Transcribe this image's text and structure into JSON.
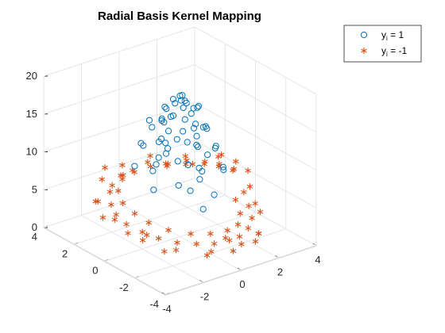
{
  "chart_data": {
    "type": "scatter3d",
    "title": "Radial Basis Kernel Mapping",
    "xlabel": "",
    "ylabel": "",
    "zlabel": "",
    "xlim": [
      -4,
      4
    ],
    "ylim": [
      -4,
      4
    ],
    "zlim": [
      0,
      20
    ],
    "x_ticks": [
      -4,
      -2,
      0,
      2,
      4
    ],
    "y_ticks": [
      -4,
      -2,
      0,
      2,
      4
    ],
    "z_ticks": [
      0,
      5,
      10,
      15,
      20
    ],
    "grid": true,
    "legend_position": "top-right",
    "colors": {
      "class_pos": "#0072BD",
      "class_neg": "#D95319"
    },
    "legend": {
      "entries": [
        {
          "label_main": "y",
          "label_sub": "i",
          "label_rest": " = 1",
          "marker": "circle"
        },
        {
          "label_main": "y",
          "label_sub": "i",
          "label_rest": " = -1",
          "marker": "asterisk"
        }
      ]
    },
    "series": [
      {
        "name": "y_i = 1",
        "marker": "circle",
        "points": [
          [
            0.0,
            0.0,
            18.6
          ],
          [
            0.2,
            0.1,
            18.4
          ],
          [
            -0.2,
            0.2,
            18.1
          ],
          [
            0.1,
            -0.3,
            17.9
          ],
          [
            -0.1,
            -0.2,
            18.3
          ],
          [
            0.5,
            0.3,
            17.2
          ],
          [
            -0.4,
            0.5,
            16.9
          ],
          [
            0.6,
            -0.4,
            17.0
          ],
          [
            -0.6,
            -0.3,
            16.8
          ],
          [
            0.3,
            0.7,
            16.6
          ],
          [
            -0.3,
            -0.7,
            16.5
          ],
          [
            0.8,
            0.1,
            16.2
          ],
          [
            -0.8,
            0.2,
            16.0
          ],
          [
            0.0,
            0.9,
            15.9
          ],
          [
            0.1,
            -0.9,
            15.8
          ],
          [
            1.0,
            0.5,
            14.9
          ],
          [
            -1.0,
            0.6,
            14.6
          ],
          [
            0.7,
            -0.9,
            14.7
          ],
          [
            -0.8,
            -0.8,
            14.4
          ],
          [
            0.4,
            1.1,
            14.3
          ],
          [
            -0.5,
            -1.1,
            14.1
          ],
          [
            1.2,
            -0.2,
            13.8
          ],
          [
            -1.2,
            -0.1,
            13.6
          ],
          [
            0.2,
            1.3,
            13.5
          ],
          [
            -0.1,
            -1.3,
            13.4
          ],
          [
            1.3,
            0.7,
            12.5
          ],
          [
            -1.3,
            0.8,
            12.2
          ],
          [
            0.9,
            -1.2,
            12.3
          ],
          [
            -1.0,
            -1.1,
            12.0
          ],
          [
            0.6,
            1.5,
            11.8
          ],
          [
            -0.7,
            -1.4,
            11.6
          ],
          [
            1.5,
            -0.5,
            11.3
          ],
          [
            -1.5,
            -0.3,
            11.1
          ],
          [
            0.3,
            1.6,
            10.9
          ],
          [
            -0.2,
            -1.7,
            10.7
          ],
          [
            1.6,
            0.9,
            9.8
          ],
          [
            -1.6,
            1.0,
            9.5
          ],
          [
            1.1,
            -1.5,
            9.6
          ],
          [
            -1.2,
            -1.4,
            9.3
          ],
          [
            0.8,
            1.8,
            9.0
          ],
          [
            -0.9,
            -1.8,
            8.8
          ],
          [
            1.8,
            -0.6,
            8.4
          ],
          [
            -1.8,
            -0.5,
            8.2
          ],
          [
            0.4,
            1.9,
            8.0
          ],
          [
            0.2,
            -2.0,
            7.6
          ],
          [
            1.2,
            1.3,
            11.5
          ],
          [
            -1.1,
            1.2,
            11.9
          ],
          [
            0.9,
            0.9,
            15.3
          ],
          [
            -0.9,
            0.9,
            15.1
          ],
          [
            0.5,
            -0.6,
            17.5
          ],
          [
            -1.3,
            -0.7,
            12.8
          ],
          [
            1.4,
            0.2,
            13.1
          ],
          [
            0.0,
            1.2,
            14.0
          ],
          [
            0.0,
            -1.1,
            14.5
          ],
          [
            1.7,
            0.3,
            9.1
          ],
          [
            -1.6,
            -0.2,
            10.2
          ],
          [
            0.6,
            1.7,
            10.0
          ],
          [
            -0.4,
            -1.8,
            9.9
          ],
          [
            1.9,
            1.1,
            6.3
          ],
          [
            -0.3,
            -1.9,
            6.0
          ]
        ]
      },
      {
        "name": "y_i = -1",
        "marker": "asterisk",
        "points": [
          [
            2.8,
            0.0,
            6.5
          ],
          [
            2.7,
            0.8,
            6.2
          ],
          [
            2.5,
            1.5,
            5.9
          ],
          [
            2.0,
            2.1,
            5.6
          ],
          [
            1.4,
            2.6,
            5.3
          ],
          [
            0.7,
            2.8,
            5.6
          ],
          [
            0.0,
            3.0,
            5.2
          ],
          [
            -0.8,
            2.9,
            5.5
          ],
          [
            -1.5,
            2.6,
            5.1
          ],
          [
            -2.1,
            2.0,
            5.4
          ],
          [
            -2.6,
            1.3,
            4.9
          ],
          [
            -2.9,
            0.6,
            4.6
          ],
          [
            -3.0,
            -0.2,
            4.3
          ],
          [
            -2.8,
            -1.0,
            4.0
          ],
          [
            -2.5,
            -1.7,
            3.7
          ],
          [
            -2.0,
            -2.3,
            3.4
          ],
          [
            -1.3,
            -2.7,
            3.1
          ],
          [
            -0.6,
            -3.0,
            2.9
          ],
          [
            0.2,
            -3.0,
            2.7
          ],
          [
            0.9,
            -2.8,
            2.4
          ],
          [
            1.6,
            -2.5,
            2.6
          ],
          [
            2.2,
            -2.0,
            2.9
          ],
          [
            2.6,
            -1.3,
            3.4
          ],
          [
            2.9,
            -0.6,
            4.2
          ],
          [
            3.2,
            0.3,
            7.0
          ],
          [
            3.0,
            1.2,
            6.8
          ],
          [
            2.3,
            2.5,
            6.0
          ],
          [
            1.0,
            3.2,
            6.3
          ],
          [
            -0.4,
            3.3,
            6.1
          ],
          [
            -1.8,
            2.9,
            5.8
          ],
          [
            -2.9,
            1.8,
            5.0
          ],
          [
            -3.3,
            0.2,
            4.7
          ],
          [
            -3.1,
            -1.4,
            3.6
          ],
          [
            -2.3,
            -2.6,
            3.0
          ],
          [
            -1.0,
            -3.3,
            2.5
          ],
          [
            0.6,
            -3.3,
            2.2
          ],
          [
            1.9,
            -2.8,
            2.0
          ],
          [
            2.8,
            -1.8,
            3.0
          ],
          [
            3.3,
            -0.5,
            4.5
          ],
          [
            2.4,
            0.4,
            7.2
          ],
          [
            2.2,
            1.1,
            6.9
          ],
          [
            1.8,
            1.8,
            6.6
          ],
          [
            1.1,
            2.3,
            6.2
          ],
          [
            0.3,
            2.5,
            6.8
          ],
          [
            -0.5,
            2.5,
            6.4
          ],
          [
            -1.2,
            2.3,
            6.0
          ],
          [
            -1.9,
            1.7,
            5.7
          ],
          [
            -2.3,
            0.9,
            5.3
          ],
          [
            -2.4,
            0.0,
            5.0
          ],
          [
            -2.3,
            -0.8,
            4.6
          ],
          [
            -1.9,
            -1.6,
            4.2
          ],
          [
            -1.2,
            -2.2,
            3.8
          ],
          [
            -0.4,
            -2.5,
            3.5
          ],
          [
            0.5,
            -2.5,
            3.2
          ],
          [
            1.3,
            -2.2,
            3.0
          ],
          [
            1.9,
            -1.6,
            3.3
          ],
          [
            2.3,
            -0.8,
            3.9
          ],
          [
            3.4,
            1.5,
            6.4
          ],
          [
            -3.4,
            -0.8,
            4.1
          ],
          [
            0.0,
            -3.5,
            2.0
          ],
          [
            3.5,
            0.8,
            5.2
          ],
          [
            -1.4,
            3.2,
            6.7
          ],
          [
            2.6,
            2.4,
            4.8
          ],
          [
            -2.6,
            -2.2,
            2.6
          ],
          [
            1.5,
            -3.1,
            1.6
          ],
          [
            -0.2,
            3.5,
            4.4
          ],
          [
            3.1,
            -1.1,
            3.1
          ],
          [
            -3.2,
            1.1,
            3.9
          ],
          [
            0.8,
            -2.0,
            1.4
          ],
          [
            -1.6,
            0.2,
            1.3
          ],
          [
            3.6,
            0.0,
            5.8
          ],
          [
            -2.7,
            2.2,
            4.4
          ],
          [
            2.0,
            -2.7,
            1.8
          ],
          [
            -0.9,
            -2.9,
            1.5
          ],
          [
            1.7,
            2.9,
            5.0
          ]
        ]
      }
    ]
  }
}
